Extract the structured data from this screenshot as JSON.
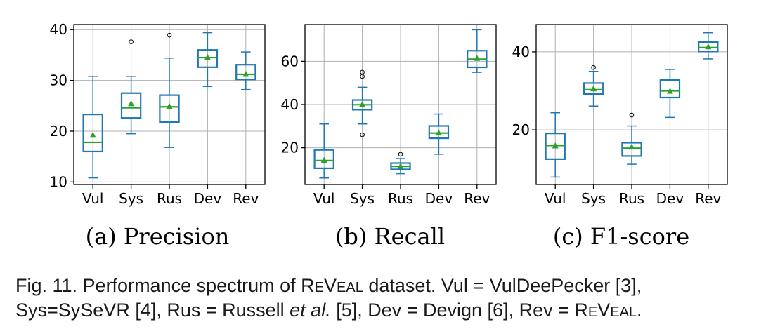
{
  "chart_data": [
    {
      "type": "box",
      "categories": [
        "Vul",
        "Sys",
        "Rus",
        "Dev",
        "Rev"
      ],
      "ylim": [
        9.5,
        41
      ],
      "yticks": [
        10,
        20,
        30,
        40
      ],
      "grid": true,
      "title": "(a) Precision",
      "series": [
        {
          "min": 10.8,
          "q1": 16.0,
          "median": 17.8,
          "q3": 23.3,
          "max": 30.8,
          "mean": 19.2,
          "outliers": []
        },
        {
          "min": 19.5,
          "q1": 22.6,
          "median": 24.6,
          "q3": 27.5,
          "max": 30.8,
          "mean": 25.4,
          "outliers": [
            37.6
          ]
        },
        {
          "min": 16.8,
          "q1": 21.8,
          "median": 24.8,
          "q3": 27.1,
          "max": 34.4,
          "mean": 24.9,
          "outliers": [
            38.9
          ]
        },
        {
          "min": 28.8,
          "q1": 32.6,
          "median": 34.5,
          "q3": 36.0,
          "max": 39.4,
          "mean": 34.5,
          "outliers": []
        },
        {
          "min": 28.2,
          "q1": 30.2,
          "median": 31.2,
          "q3": 33.1,
          "max": 35.6,
          "mean": 31.2,
          "outliers": []
        }
      ]
    },
    {
      "type": "box",
      "categories": [
        "Vul",
        "Sys",
        "Rus",
        "Dev",
        "Rev"
      ],
      "ylim": [
        3,
        77
      ],
      "yticks": [
        20,
        40,
        60
      ],
      "grid": true,
      "title": "(b) Recall",
      "series": [
        {
          "min": 6.0,
          "q1": 10.5,
          "median": 14.1,
          "q3": 19.0,
          "max": 31.0,
          "mean": 14.2,
          "outliers": []
        },
        {
          "min": 31.0,
          "q1": 37.6,
          "median": 39.9,
          "q3": 42.1,
          "max": 48.0,
          "mean": 40.0,
          "outliers": [
            26.0,
            53.0,
            55.0
          ]
        },
        {
          "min": 8.0,
          "q1": 10.0,
          "median": 11.4,
          "q3": 12.9,
          "max": 15.0,
          "mean": 11.4,
          "outliers": [
            17.0
          ]
        },
        {
          "min": 17.0,
          "q1": 24.4,
          "median": 26.8,
          "q3": 30.1,
          "max": 35.6,
          "mean": 26.8,
          "outliers": []
        },
        {
          "min": 54.9,
          "q1": 57.2,
          "median": 61.0,
          "q3": 64.9,
          "max": 74.6,
          "mean": 61.4,
          "outliers": []
        }
      ]
    },
    {
      "type": "box",
      "categories": [
        "Vul",
        "Sys",
        "Rus",
        "Dev",
        "Rev"
      ],
      "ylim": [
        6,
        47
      ],
      "yticks": [
        20,
        40
      ],
      "grid": true,
      "title": "(c) F1-score",
      "series": [
        {
          "min": 7.9,
          "q1": 12.5,
          "median": 16.0,
          "q3": 19.1,
          "max": 24.4,
          "mean": 15.9,
          "outliers": []
        },
        {
          "min": 26.1,
          "q1": 29.2,
          "median": 30.3,
          "q3": 32.0,
          "max": 35.0,
          "mean": 30.5,
          "outliers": [
            36.0
          ]
        },
        {
          "min": 11.2,
          "q1": 13.3,
          "median": 15.3,
          "q3": 16.7,
          "max": 21.0,
          "mean": 15.6,
          "outliers": [
            23.8
          ]
        },
        {
          "min": 23.2,
          "q1": 28.3,
          "median": 30.0,
          "q3": 32.8,
          "max": 35.5,
          "mean": 29.9,
          "outliers": []
        },
        {
          "min": 38.2,
          "q1": 40.1,
          "median": 41.1,
          "q3": 42.5,
          "max": 44.9,
          "mean": 41.3,
          "outliers": []
        }
      ]
    }
  ],
  "caption": {
    "line1_pre": "Fig. 11. Performance spectrum of ",
    "line1_sc_r": "R",
    "line1_sc_e": "E",
    "line1_sc_v": "V",
    "line1_sc_eal": "EAL",
    "line1_post": " dataset. Vul = VulDeePecker [3],",
    "line2_pre": "Sys=SySeVR [4], Rus = Russell ",
    "line2_italic": "et al.",
    "line2_mid": " [5], Dev = Devign [6], Rev = ",
    "line2_sc_r": "R",
    "line2_sc_e": "E",
    "line2_sc_v": "V",
    "line2_sc_eal": "EAL",
    "line2_post": "."
  },
  "colors": {
    "box": "#1f77b4",
    "median": "#2ca02c",
    "mean": "#2ca02c",
    "grid": "#b0b0b0",
    "caption": "#1a1a1a"
  }
}
